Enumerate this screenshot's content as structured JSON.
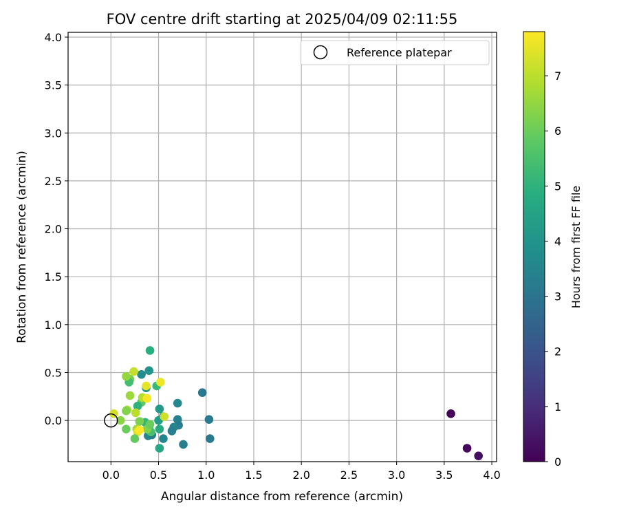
{
  "chart_data": {
    "type": "scatter",
    "title": "FOV centre drift starting at 2025/04/09 02:11:55",
    "xlabel": "Angular distance from reference (arcmin)",
    "ylabel": "Rotation from reference (arcmin)",
    "xlim": [
      -0.45,
      4.05
    ],
    "ylim": [
      -0.43,
      4.05
    ],
    "xticks": [
      "0.0",
      "0.5",
      "1.0",
      "1.5",
      "2.0",
      "2.5",
      "3.0",
      "3.5",
      "4.0"
    ],
    "xtick_values": [
      0.0,
      0.5,
      1.0,
      1.5,
      2.0,
      2.5,
      3.0,
      3.5,
      4.0
    ],
    "yticks": [
      "0.0",
      "0.5",
      "1.0",
      "1.5",
      "2.0",
      "2.5",
      "3.0",
      "3.5",
      "4.0"
    ],
    "ytick_values": [
      0.0,
      0.5,
      1.0,
      1.5,
      2.0,
      2.5,
      3.0,
      3.5,
      4.0
    ],
    "grid": true,
    "legend": {
      "placement": "top-right",
      "entries": [
        {
          "label": "Reference platepar",
          "marker": "open-circle"
        }
      ]
    },
    "reference_point": {
      "x": 0.0,
      "y": 0.0
    },
    "colorbar": {
      "label": "Hours from first FF file",
      "colormap": "viridis",
      "range": [
        0,
        7.8
      ],
      "ticks": [
        "0",
        "1",
        "2",
        "3",
        "4",
        "5",
        "6",
        "7"
      ],
      "tick_values": [
        0,
        1,
        2,
        3,
        4,
        5,
        6,
        7
      ]
    },
    "points": [
      {
        "x": 3.57,
        "y": 0.07,
        "c": 0.1
      },
      {
        "x": 3.74,
        "y": -0.29,
        "c": 0.2
      },
      {
        "x": 3.86,
        "y": -0.37,
        "c": 0.3
      },
      {
        "x": 0.96,
        "y": 0.29,
        "c": 3.1
      },
      {
        "x": 1.03,
        "y": 0.01,
        "c": 3.2
      },
      {
        "x": 1.04,
        "y": -0.19,
        "c": 3.1
      },
      {
        "x": 0.76,
        "y": -0.25,
        "c": 3.3
      },
      {
        "x": 0.7,
        "y": 0.18,
        "c": 3.6
      },
      {
        "x": 0.7,
        "y": 0.01,
        "c": 3.4
      },
      {
        "x": 0.71,
        "y": -0.05,
        "c": 3.2
      },
      {
        "x": 0.66,
        "y": -0.07,
        "c": 3.5
      },
      {
        "x": 0.64,
        "y": -0.11,
        "c": 3.3
      },
      {
        "x": 0.55,
        "y": -0.19,
        "c": 3.6
      },
      {
        "x": 0.55,
        "y": 0.04,
        "c": 3.8
      },
      {
        "x": 0.51,
        "y": 0.12,
        "c": 4.2
      },
      {
        "x": 0.5,
        "y": 0.0,
        "c": 4.3
      },
      {
        "x": 0.51,
        "y": -0.29,
        "c": 4.6
      },
      {
        "x": 0.51,
        "y": -0.09,
        "c": 4.8
      },
      {
        "x": 0.48,
        "y": 0.36,
        "c": 5.2
      },
      {
        "x": 0.41,
        "y": 0.73,
        "c": 4.9
      },
      {
        "x": 0.4,
        "y": 0.52,
        "c": 4.0
      },
      {
        "x": 0.37,
        "y": 0.34,
        "c": 4.1
      },
      {
        "x": 0.32,
        "y": 0.48,
        "c": 3.7
      },
      {
        "x": 0.39,
        "y": -0.16,
        "c": 3.5
      },
      {
        "x": 0.43,
        "y": -0.15,
        "c": 3.3
      },
      {
        "x": 0.4,
        "y": -0.06,
        "c": 4.4
      },
      {
        "x": 0.36,
        "y": -0.02,
        "c": 5.1
      },
      {
        "x": 0.42,
        "y": -0.12,
        "c": 5.5
      },
      {
        "x": 0.38,
        "y": -0.09,
        "c": 6.3
      },
      {
        "x": 0.41,
        "y": -0.04,
        "c": 6.0
      },
      {
        "x": 0.32,
        "y": 0.19,
        "c": 5.8
      },
      {
        "x": 0.28,
        "y": 0.15,
        "c": 5.0
      },
      {
        "x": 0.33,
        "y": 0.24,
        "c": 6.9
      },
      {
        "x": 0.37,
        "y": 0.36,
        "c": 7.5
      },
      {
        "x": 0.38,
        "y": 0.23,
        "c": 7.7
      },
      {
        "x": 0.3,
        "y": -0.01,
        "c": 6.2
      },
      {
        "x": 0.26,
        "y": 0.08,
        "c": 7.0
      },
      {
        "x": 0.27,
        "y": -0.09,
        "c": 6.7
      },
      {
        "x": 0.28,
        "y": -0.12,
        "c": 7.4
      },
      {
        "x": 0.3,
        "y": -0.1,
        "c": 7.8
      },
      {
        "x": 0.25,
        "y": -0.19,
        "c": 5.9
      },
      {
        "x": 0.24,
        "y": 0.51,
        "c": 7.1
      },
      {
        "x": 0.2,
        "y": 0.43,
        "c": 6.2
      },
      {
        "x": 0.19,
        "y": 0.4,
        "c": 5.4
      },
      {
        "x": 0.16,
        "y": 0.46,
        "c": 6.5
      },
      {
        "x": 0.2,
        "y": 0.26,
        "c": 6.6
      },
      {
        "x": 0.17,
        "y": 0.11,
        "c": 6.8
      },
      {
        "x": 0.16,
        "y": 0.1,
        "c": 6.3
      },
      {
        "x": 0.16,
        "y": -0.09,
        "c": 6.0
      },
      {
        "x": 0.1,
        "y": 0.0,
        "c": 6.4
      },
      {
        "x": 0.03,
        "y": 0.07,
        "c": 7.3
      },
      {
        "x": 0.52,
        "y": 0.4,
        "c": 7.6
      },
      {
        "x": 0.56,
        "y": 0.04,
        "c": 7.2
      }
    ]
  }
}
